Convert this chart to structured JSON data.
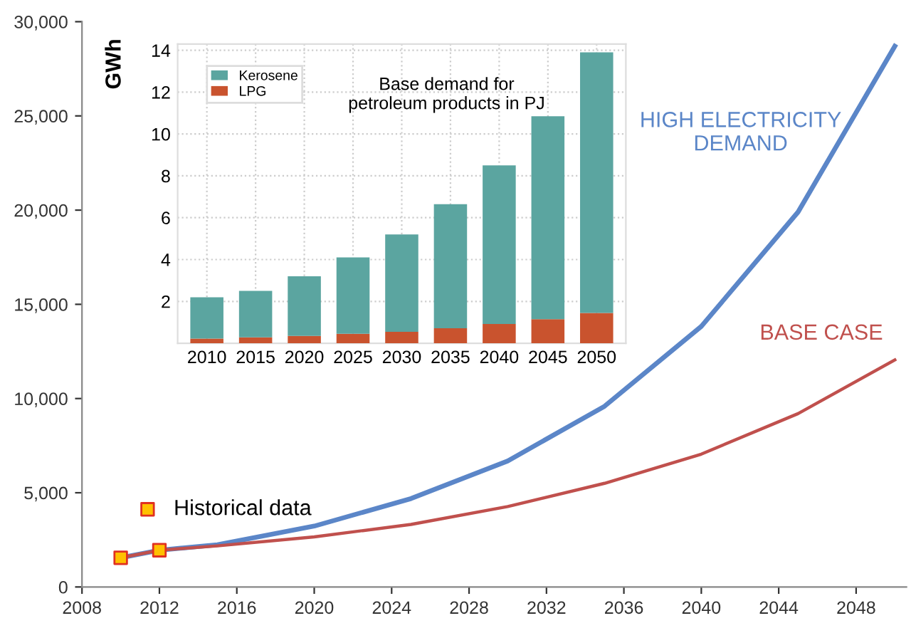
{
  "chart_data": [
    {
      "type": "line",
      "ylabel": "GWh",
      "xlim": [
        2008,
        2050.6
      ],
      "ylim": [
        0,
        30000
      ],
      "xticks": [
        2008,
        2012,
        2016,
        2020,
        2024,
        2028,
        2032,
        2036,
        2040,
        2044,
        2048
      ],
      "yticks": [
        {
          "value": 0,
          "label": "0"
        },
        {
          "value": 5000,
          "label": "5,000"
        },
        {
          "value": 10000,
          "label": "10,000"
        },
        {
          "value": 15000,
          "label": "15,000"
        },
        {
          "value": 20000,
          "label": "20,000"
        },
        {
          "value": 25000,
          "label": "25,000"
        },
        {
          "value": 30000,
          "label": "30,000"
        }
      ],
      "grid": false,
      "legend": "bottom left",
      "series": [
        {
          "name": "HIGH ELECTRICITY DEMAND",
          "type": "line",
          "color": "#5b86c8",
          "x": [
            2010,
            2012,
            2015,
            2020,
            2025,
            2030,
            2035,
            2040,
            2045,
            2050
          ],
          "values": [
            1550,
            1950,
            2240,
            3230,
            4690,
            6690,
            9590,
            13830,
            19900,
            28700
          ]
        },
        {
          "name": "BASE CASE",
          "type": "line",
          "color": "#c0504d",
          "x": [
            2010,
            2012,
            2015,
            2020,
            2025,
            2030,
            2035,
            2040,
            2045,
            2050
          ],
          "values": [
            1550,
            1950,
            2180,
            2660,
            3320,
            4270,
            5500,
            7050,
            9200,
            12050
          ]
        },
        {
          "name": "Historical data",
          "type": "scatter",
          "marker": "square",
          "color": "#ffc000",
          "x": [
            2010,
            2012
          ],
          "values": [
            1550,
            1950
          ]
        }
      ]
    },
    {
      "type": "bar",
      "stacked": true,
      "categories": [
        "2010",
        "2015",
        "2020",
        "2025",
        "2030",
        "2035",
        "2040",
        "2045",
        "2050"
      ],
      "ylim": [
        0,
        14.3
      ],
      "yticks": [
        2,
        4,
        6,
        8,
        10,
        12,
        14
      ],
      "grid": true,
      "legend": "top left",
      "annotations": [
        "Base demand for\npetroleum products in PJ"
      ],
      "series": [
        {
          "name": "LPG",
          "color": "#c9532e",
          "values": [
            0.22,
            0.28,
            0.35,
            0.45,
            0.55,
            0.72,
            0.92,
            1.15,
            1.45
          ]
        },
        {
          "name": "Kerosene",
          "color": "#5ba5a0",
          "values": [
            1.98,
            2.22,
            2.85,
            3.65,
            4.65,
            5.93,
            7.58,
            9.7,
            12.45
          ]
        }
      ]
    }
  ]
}
